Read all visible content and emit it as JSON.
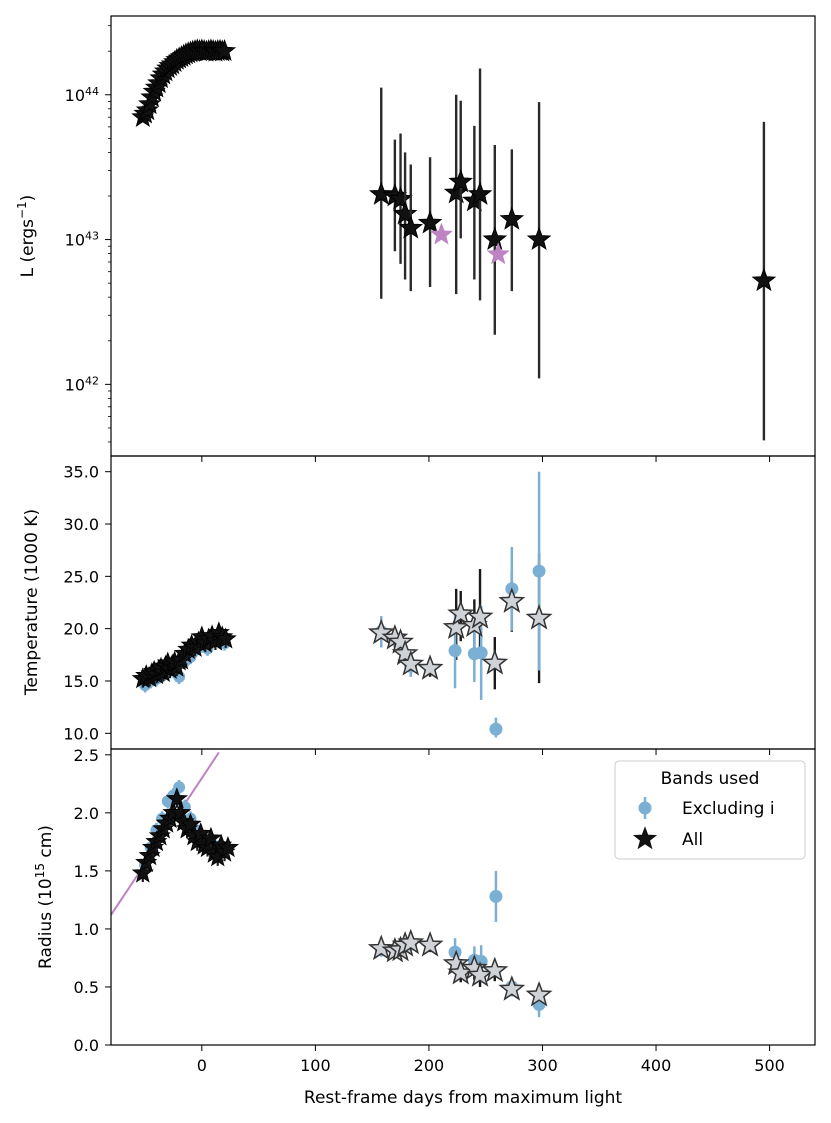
{
  "figure": {
    "xlabel": "Rest-frame days from maximum light"
  },
  "chart_data": [
    {
      "type": "scatter",
      "panel": "luminosity",
      "ylabel": "L (ergs",
      "ylabel_sup": "−1",
      "ylabel_end": ")",
      "yscale": "log",
      "xlim": [
        -80,
        540
      ],
      "ylim": [
        3.2e+41,
        3.5e+44
      ],
      "y_tick_labels": [
        {
          "base": "10",
          "exp": "42",
          "v": 1e+42
        },
        {
          "base": "10",
          "exp": "43",
          "v": 1e+43
        },
        {
          "base": "10",
          "exp": "44",
          "v": 1e+44
        }
      ],
      "early_points_all": [
        [
          -52,
          7e+43
        ],
        [
          -50,
          7.4e+43
        ],
        [
          -48,
          7.8e+43
        ],
        [
          -46,
          8.6e+43
        ],
        [
          -44,
          9.6e+43
        ],
        [
          -42,
          1.05e+44
        ],
        [
          -40,
          1.12e+44
        ],
        [
          -38,
          1.2e+44
        ],
        [
          -36,
          1.3e+44
        ],
        [
          -34,
          1.38e+44
        ],
        [
          -32,
          1.45e+44
        ],
        [
          -30,
          1.52e+44
        ],
        [
          -28,
          1.58e+44
        ],
        [
          -26,
          1.62e+44
        ],
        [
          -24,
          1.68e+44
        ],
        [
          -22,
          1.74e+44
        ],
        [
          -20,
          1.78e+44
        ],
        [
          -18,
          1.82e+44
        ],
        [
          -16,
          1.86e+44
        ],
        [
          -14,
          1.9e+44
        ],
        [
          -12,
          1.93e+44
        ],
        [
          -10,
          1.96e+44
        ],
        [
          -8,
          1.98e+44
        ],
        [
          -6,
          2e+44
        ],
        [
          -4,
          2.02e+44
        ],
        [
          -2,
          2e+44
        ],
        [
          0,
          2.02e+44
        ],
        [
          2,
          2e+44
        ],
        [
          4,
          1.98e+44
        ],
        [
          6,
          2e+44
        ],
        [
          8,
          2.02e+44
        ],
        [
          10,
          2e+44
        ],
        [
          12,
          1.98e+44
        ],
        [
          14,
          2e+44
        ],
        [
          16,
          2.01e+44
        ],
        [
          18,
          1.99e+44
        ],
        [
          20,
          2e+44
        ]
      ],
      "late_points_all": [
        {
          "x": 158,
          "y": 2.05e+43,
          "lo": 3.9e+42,
          "hi": 1.12e+44
        },
        {
          "x": 170,
          "y": 2e+43,
          "lo": 8.3e+42,
          "hi": 4.9e+43
        },
        {
          "x": 175,
          "y": 1.9e+43,
          "lo": 6.8e+42,
          "hi": 5.4e+43
        },
        {
          "x": 179,
          "y": 1.5e+43,
          "lo": 5.3e+42,
          "hi": 4e+43
        },
        {
          "x": 184,
          "y": 1.2e+43,
          "lo": 4.4e+42,
          "hi": 3.3e+43
        },
        {
          "x": 201,
          "y": 1.3e+43,
          "lo": 4.7e+42,
          "hi": 3.7e+43
        },
        {
          "x": 224,
          "y": 2.1e+43,
          "lo": 4.2e+42,
          "hi": 1e+44
        },
        {
          "x": 228,
          "y": 2.5e+43,
          "lo": 1.02e+43,
          "hi": 9.1e+43
        },
        {
          "x": 240,
          "y": 1.85e+43,
          "lo": 5.3e+42,
          "hi": 6.1e+43
        },
        {
          "x": 245,
          "y": 2.05e+43,
          "lo": 3.8e+42,
          "hi": 1.52e+44
        },
        {
          "x": 258,
          "y": 1e+43,
          "lo": 2.2e+42,
          "hi": 4.5e+43
        },
        {
          "x": 273,
          "y": 1.38e+43,
          "lo": 4.4e+42,
          "hi": 4.2e+43
        },
        {
          "x": 297,
          "y": 1e+43,
          "lo": 1.1e+42,
          "hi": 8.9e+43
        },
        {
          "x": 495,
          "y": 5.2e+42,
          "lo": 4.1e+41,
          "hi": 6.5e+43
        }
      ],
      "late_points_excluding_i": [
        {
          "x": 211,
          "y": 1.08e+43
        },
        {
          "x": 261,
          "y": 7.9e+42
        }
      ],
      "colors": {
        "all": "#111111",
        "excluding_i_star": "#bd83c2"
      }
    },
    {
      "type": "scatter",
      "panel": "temperature",
      "ylabel": "Temperature (1000 K)",
      "xlim": [
        -80,
        540
      ],
      "ylim": [
        8.5,
        36.5
      ],
      "y_tick_labels": [
        "10.0",
        "15.0",
        "20.0",
        "25.0",
        "30.0",
        "35.0"
      ],
      "y_tick_values": [
        10,
        15,
        20,
        25,
        30,
        35
      ],
      "early_points_all": [
        [
          -52,
          15.2
        ],
        [
          -49,
          15.5
        ],
        [
          -46,
          15.3
        ],
        [
          -44,
          15.7
        ],
        [
          -42,
          15.9
        ],
        [
          -40,
          15.6
        ],
        [
          -38,
          16.0
        ],
        [
          -36,
          16.2
        ],
        [
          -34,
          15.8
        ],
        [
          -32,
          16.4
        ],
        [
          -30,
          16.7
        ],
        [
          -28,
          16.1
        ],
        [
          -26,
          16.5
        ],
        [
          -24,
          16.8
        ],
        [
          -22,
          16.3
        ],
        [
          -20,
          16.9
        ],
        [
          -18,
          17.0
        ],
        [
          -15,
          17.6
        ],
        [
          -12,
          18.0
        ],
        [
          -9,
          18.4
        ],
        [
          -6,
          18.2
        ],
        [
          -3,
          18.7
        ],
        [
          0,
          19.2
        ],
        [
          3,
          18.6
        ],
        [
          6,
          19.0
        ],
        [
          9,
          19.3
        ],
        [
          12,
          18.8
        ],
        [
          15,
          19.6
        ],
        [
          18,
          19.2
        ],
        [
          21,
          19.0
        ]
      ],
      "early_points_excluding_i": [
        [
          -50,
          14.6
        ],
        [
          -45,
          15.0
        ],
        [
          -40,
          15.2
        ],
        [
          -35,
          15.5
        ],
        [
          -30,
          15.9
        ],
        [
          -25,
          16.0
        ],
        [
          -20,
          15.4
        ],
        [
          -15,
          16.9
        ],
        [
          -10,
          17.3
        ],
        [
          -5,
          18.0
        ],
        [
          0,
          18.4
        ],
        [
          5,
          18.1
        ],
        [
          10,
          18.9
        ],
        [
          15,
          19.1
        ],
        [
          20,
          18.6
        ]
      ],
      "late_points_all": [
        {
          "x": 158,
          "y": 19.6,
          "lo": 18.6,
          "hi": 20.6
        },
        {
          "x": 170,
          "y": 19.1,
          "lo": 18.2,
          "hi": 20.0
        },
        {
          "x": 175,
          "y": 18.7,
          "lo": 17.8,
          "hi": 19.6
        },
        {
          "x": 179,
          "y": 17.6,
          "lo": 16.8,
          "hi": 18.4
        },
        {
          "x": 184,
          "y": 16.6,
          "lo": 15.9,
          "hi": 17.3
        },
        {
          "x": 201,
          "y": 16.2,
          "lo": 15.4,
          "hi": 17.0
        },
        {
          "x": 224,
          "y": 20.1,
          "lo": 17.0,
          "hi": 23.8
        },
        {
          "x": 228,
          "y": 21.4,
          "lo": 18.8,
          "hi": 23.6
        },
        {
          "x": 240,
          "y": 20.3,
          "lo": 17.8,
          "hi": 22.8
        },
        {
          "x": 245,
          "y": 21.1,
          "lo": 17.6,
          "hi": 25.7
        },
        {
          "x": 258,
          "y": 16.7,
          "lo": 14.2,
          "hi": 19.2
        },
        {
          "x": 273,
          "y": 22.6,
          "lo": 19.7,
          "hi": 25.5
        },
        {
          "x": 297,
          "y": 21.0,
          "lo": 14.8,
          "hi": 27.2
        }
      ],
      "late_points_excluding_i": [
        {
          "x": 158,
          "y": 19.7,
          "lo": 18.2,
          "hi": 21.2
        },
        {
          "x": 175,
          "y": 18.3,
          "lo": 17.1,
          "hi": 19.5
        },
        {
          "x": 184,
          "y": 16.4,
          "lo": 15.4,
          "hi": 17.4
        },
        {
          "x": 223,
          "y": 17.9,
          "lo": 14.3,
          "hi": 21.5
        },
        {
          "x": 240,
          "y": 17.6,
          "lo": 14.9,
          "hi": 20.3
        },
        {
          "x": 246,
          "y": 17.7,
          "lo": 13.2,
          "hi": 22.2
        },
        {
          "x": 259,
          "y": 10.4,
          "lo": 9.6,
          "hi": 11.5
        },
        {
          "x": 273,
          "y": 23.8,
          "lo": 19.8,
          "hi": 27.8
        },
        {
          "x": 297,
          "y": 25.5,
          "lo": 16.0,
          "hi": 35.0
        }
      ],
      "colors": {
        "all": "#111111",
        "all_late_fill": "#cfd3d8",
        "excluding_i": "#7bafd4"
      }
    },
    {
      "type": "scatter",
      "panel": "radius",
      "ylabel": "Radius (10",
      "ylabel_sup": "15",
      "ylabel_end": " cm)",
      "xlim": [
        -80,
        540
      ],
      "ylim": [
        0.0,
        2.55
      ],
      "y_tick_labels": [
        "0.0",
        "0.5",
        "1.0",
        "1.5",
        "2.0",
        "2.5"
      ],
      "y_tick_values": [
        0,
        0.5,
        1.0,
        1.5,
        2.0,
        2.5
      ],
      "x_tick_labels": [
        "0",
        "100",
        "200",
        "300",
        "400",
        "500"
      ],
      "x_tick_values": [
        0,
        100,
        200,
        300,
        400,
        500
      ],
      "early_points_all": [
        [
          -52,
          1.48
        ],
        [
          -49,
          1.57
        ],
        [
          -46,
          1.63
        ],
        [
          -43,
          1.7
        ],
        [
          -40,
          1.75
        ],
        [
          -37,
          1.8
        ],
        [
          -34,
          1.86
        ],
        [
          -31,
          1.91
        ],
        [
          -28,
          1.95
        ],
        [
          -25,
          2.0
        ],
        [
          -22,
          2.12
        ],
        [
          -19,
          2.0
        ],
        [
          -16,
          1.92
        ],
        [
          -13,
          1.86
        ],
        [
          -10,
          1.9
        ],
        [
          -7,
          1.8
        ],
        [
          -4,
          1.75
        ],
        [
          -1,
          1.82
        ],
        [
          2,
          1.72
        ],
        [
          5,
          1.7
        ],
        [
          8,
          1.78
        ],
        [
          11,
          1.65
        ],
        [
          14,
          1.62
        ],
        [
          17,
          1.72
        ],
        [
          20,
          1.66
        ],
        [
          23,
          1.7
        ]
      ],
      "early_points_excluding_i": [
        [
          -50,
          1.55
        ],
        [
          -45,
          1.7
        ],
        [
          -40,
          1.85
        ],
        [
          -35,
          1.95
        ],
        [
          -30,
          2.1
        ],
        [
          -25,
          2.15
        ],
        [
          -20,
          2.22
        ],
        [
          -15,
          2.05
        ],
        [
          -10,
          1.95
        ],
        [
          -5,
          1.85
        ],
        [
          0,
          1.8
        ],
        [
          5,
          1.75
        ],
        [
          10,
          1.72
        ],
        [
          15,
          1.7
        ],
        [
          20,
          1.68
        ]
      ],
      "late_points_all": [
        {
          "x": 158,
          "y": 0.83,
          "lo": 0.77,
          "hi": 0.89
        },
        {
          "x": 170,
          "y": 0.81,
          "lo": 0.75,
          "hi": 0.87
        },
        {
          "x": 175,
          "y": 0.82,
          "lo": 0.76,
          "hi": 0.88
        },
        {
          "x": 179,
          "y": 0.86,
          "lo": 0.8,
          "hi": 0.92
        },
        {
          "x": 184,
          "y": 0.88,
          "lo": 0.82,
          "hi": 0.94
        },
        {
          "x": 201,
          "y": 0.86,
          "lo": 0.8,
          "hi": 0.92
        },
        {
          "x": 224,
          "y": 0.7,
          "lo": 0.6,
          "hi": 0.8
        },
        {
          "x": 228,
          "y": 0.62,
          "lo": 0.54,
          "hi": 0.7
        },
        {
          "x": 240,
          "y": 0.66,
          "lo": 0.56,
          "hi": 0.76
        },
        {
          "x": 245,
          "y": 0.6,
          "lo": 0.5,
          "hi": 0.72
        },
        {
          "x": 258,
          "y": 0.64,
          "lo": 0.55,
          "hi": 0.73
        },
        {
          "x": 273,
          "y": 0.48,
          "lo": 0.42,
          "hi": 0.54
        },
        {
          "x": 297,
          "y": 0.43,
          "lo": 0.33,
          "hi": 0.53
        }
      ],
      "late_points_excluding_i": [
        {
          "x": 158,
          "y": 0.82,
          "lo": 0.76,
          "hi": 0.88
        },
        {
          "x": 184,
          "y": 0.87,
          "lo": 0.81,
          "hi": 0.93
        },
        {
          "x": 223,
          "y": 0.8,
          "lo": 0.68,
          "hi": 0.92
        },
        {
          "x": 240,
          "y": 0.73,
          "lo": 0.61,
          "hi": 0.85
        },
        {
          "x": 246,
          "y": 0.72,
          "lo": 0.58,
          "hi": 0.86
        },
        {
          "x": 259,
          "y": 1.28,
          "lo": 1.06,
          "hi": 1.5
        },
        {
          "x": 273,
          "y": 0.5,
          "lo": 0.42,
          "hi": 0.58
        },
        {
          "x": 297,
          "y": 0.35,
          "lo": 0.24,
          "hi": 0.46
        }
      ],
      "fit_line": {
        "x": [
          -80,
          15
        ],
        "y": [
          1.12,
          2.52
        ]
      },
      "legend": {
        "title": "Bands used",
        "entries": [
          "Excluding i",
          "All"
        ],
        "placement": "top-right"
      },
      "colors": {
        "all": "#111111",
        "all_late_fill": "#cfd3d8",
        "excluding_i": "#7bafd4",
        "fit_line": "#bd83c2"
      }
    }
  ]
}
